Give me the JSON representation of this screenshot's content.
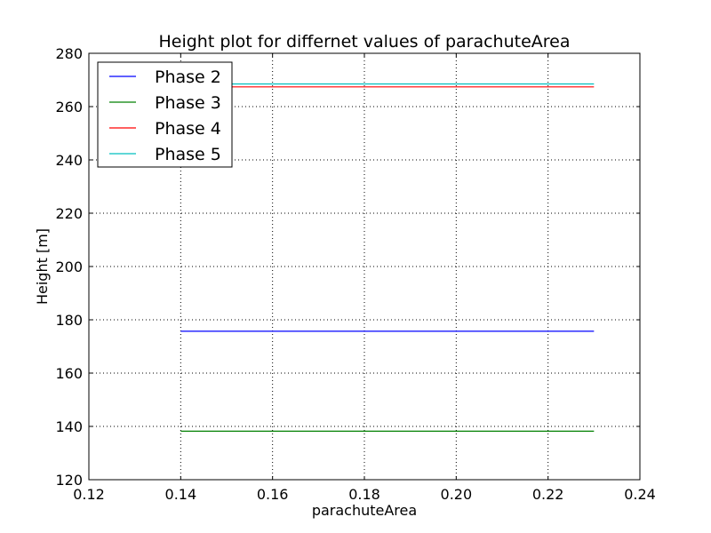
{
  "chart_data": {
    "type": "line",
    "title": "Height plot for differnet values of parachuteArea",
    "xlabel": "parachuteArea",
    "ylabel": "Height [m]",
    "xlim": [
      0.12,
      0.24
    ],
    "ylim": [
      120,
      280
    ],
    "xticks": [
      0.12,
      0.14,
      0.16,
      0.18,
      0.2,
      0.22,
      0.24
    ],
    "yticks": [
      120,
      140,
      160,
      180,
      200,
      220,
      240,
      260,
      280
    ],
    "xtick_labels": [
      "0.12",
      "0.14",
      "0.16",
      "0.18",
      "0.20",
      "0.22",
      "0.24"
    ],
    "ytick_labels": [
      "120",
      "140",
      "160",
      "180",
      "200",
      "220",
      "240",
      "260",
      "280"
    ],
    "grid": true,
    "legend_position": "top-left",
    "series": [
      {
        "name": "Phase 2",
        "color": "#0000ff",
        "x": [
          0.14,
          0.23
        ],
        "y": [
          175.7,
          175.7
        ]
      },
      {
        "name": "Phase 3",
        "color": "#008000",
        "x": [
          0.14,
          0.23
        ],
        "y": [
          138.2,
          138.2
        ]
      },
      {
        "name": "Phase 4",
        "color": "#ff0000",
        "x": [
          0.14,
          0.23
        ],
        "y": [
          267.4,
          267.4
        ]
      },
      {
        "name": "Phase 5",
        "color": "#00bfbf",
        "x": [
          0.14,
          0.23
        ],
        "y": [
          268.5,
          268.5
        ]
      }
    ]
  }
}
